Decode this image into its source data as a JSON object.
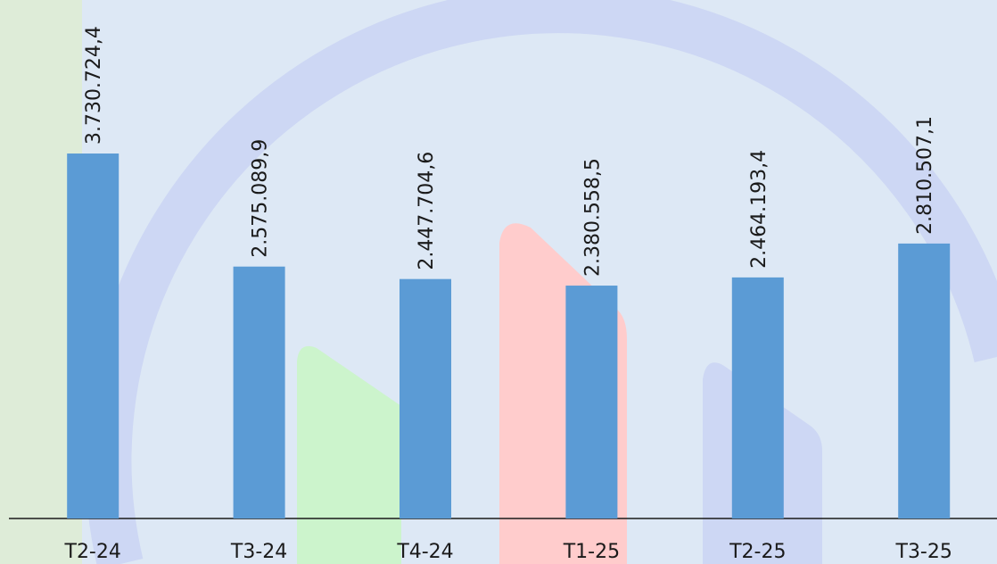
{
  "chart_data": {
    "type": "bar",
    "categories": [
      "T2-24",
      "T3-24",
      "T4-24",
      "T1-25",
      "T2-25",
      "T3-25"
    ],
    "values": [
      3730724.4,
      2575089.9,
      2447704.6,
      2380558.5,
      2464193.4,
      2810507.1
    ],
    "value_labels": [
      "3.730.724,4",
      "2.575.089,9",
      "2.447.704,6",
      "2.380.558,5",
      "2.464.193,4",
      "2.810.507,1"
    ],
    "color": "#5b9bd5",
    "ylim": [
      0,
      5300000
    ]
  }
}
